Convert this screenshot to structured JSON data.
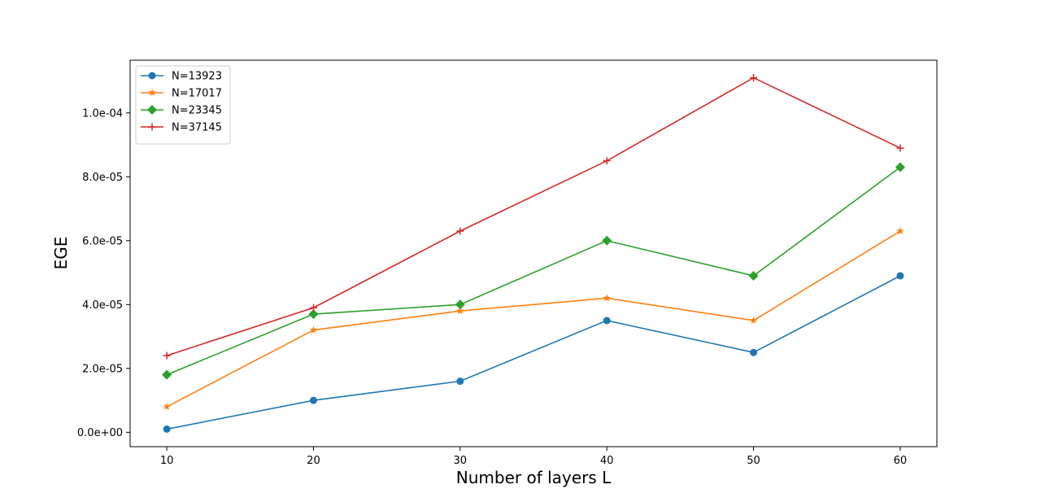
{
  "chart_data": {
    "type": "line",
    "xlabel": "Number of layers L",
    "ylabel": "EGE",
    "x": [
      10,
      20,
      30,
      40,
      50,
      60
    ],
    "xticks": [
      "10",
      "20",
      "30",
      "40",
      "50",
      "60"
    ],
    "yticks": [
      {
        "value": 0,
        "label": "0.0e+00"
      },
      {
        "value": 2e-05,
        "label": "2.0e-05"
      },
      {
        "value": 4e-05,
        "label": "4.0e-05"
      },
      {
        "value": 6e-05,
        "label": "6.0e-05"
      },
      {
        "value": 8e-05,
        "label": "8.0e-05"
      },
      {
        "value": 0.0001,
        "label": "1.0e-04"
      }
    ],
    "xlim": [
      7.5,
      62.5
    ],
    "ylim": [
      -4.5e-06,
      0.0001165
    ],
    "grid": false,
    "legend_position": "top-left",
    "series": [
      {
        "name": "N=13923",
        "color": "#1f77b4",
        "marker": "circle",
        "values": [
          1e-06,
          1e-05,
          1.6e-05,
          3.5e-05,
          2.5e-05,
          4.9e-05
        ]
      },
      {
        "name": "N=17017",
        "color": "#ff7f0e",
        "marker": "star",
        "values": [
          8e-06,
          3.2e-05,
          3.8e-05,
          4.2e-05,
          3.5e-05,
          6.3e-05
        ]
      },
      {
        "name": "N=23345",
        "color": "#2ca02c",
        "marker": "diamond",
        "values": [
          1.8e-05,
          3.7e-05,
          4e-05,
          6e-05,
          4.9e-05,
          8.3e-05
        ]
      },
      {
        "name": "N=37145",
        "color": "#d62728",
        "marker": "plus",
        "values": [
          2.4e-05,
          3.9e-05,
          6.3e-05,
          8.5e-05,
          0.000111,
          8.9e-05
        ]
      }
    ]
  }
}
